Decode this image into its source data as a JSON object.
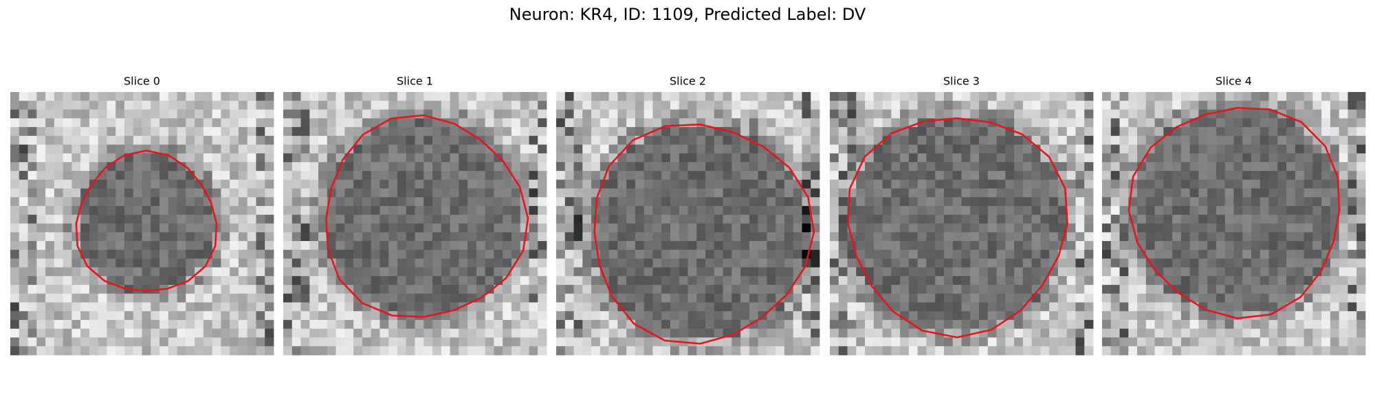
{
  "title": "Neuron: KR4, ID: 1109, Predicted Label: DV",
  "panels": [
    {
      "title": "Slice 0"
    },
    {
      "title": "Slice 1"
    },
    {
      "title": "Slice 2"
    },
    {
      "title": "Slice 3"
    },
    {
      "title": "Slice 4"
    }
  ]
}
